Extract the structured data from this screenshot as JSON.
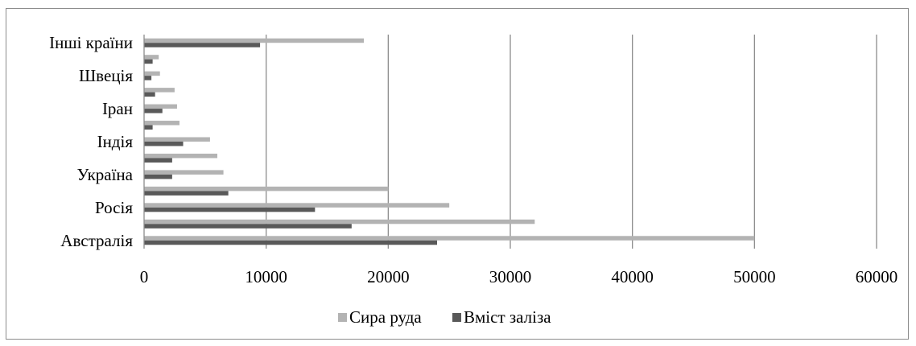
{
  "chart_data": {
    "type": "bar",
    "orientation": "horizontal",
    "categories_from_bottom": [
      "Австралія",
      "",
      "Росія",
      "",
      "Україна",
      "",
      "Індія",
      "",
      "Іран",
      "",
      "Швеція",
      "",
      "Інші країни"
    ],
    "series": [
      {
        "name": "Сира руда",
        "color": "#b3b3b3",
        "values": [
          50000,
          32000,
          25000,
          20000,
          6500,
          6000,
          5400,
          2900,
          2700,
          2500,
          1300,
          1200,
          18000
        ]
      },
      {
        "name": "Вміст заліза",
        "color": "#595959",
        "values": [
          24000,
          17000,
          14000,
          6900,
          2300,
          2300,
          3200,
          700,
          1500,
          900,
          600,
          700,
          9500
        ]
      }
    ],
    "xlim": [
      0,
      60000
    ],
    "xticks": [
      "0",
      "10000",
      "20000",
      "30000",
      "40000",
      "50000",
      "60000"
    ],
    "grid": "vertical",
    "legend": "bottom"
  }
}
